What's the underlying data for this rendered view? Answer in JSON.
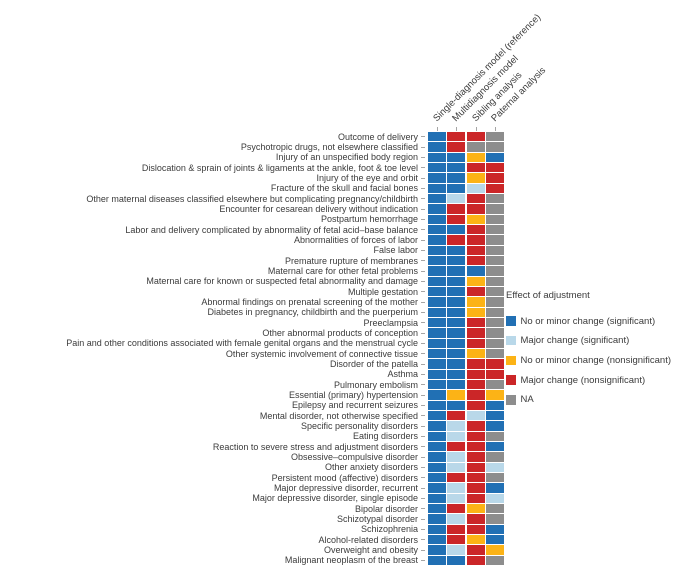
{
  "legend": {
    "title": "Effect of adjustment",
    "items": [
      {
        "code": "B",
        "label": "No or minor change (significant)",
        "color": "#2170b4"
      },
      {
        "code": "L",
        "label": "Major change (significant)",
        "color": "#b9d8e9"
      },
      {
        "code": "Y",
        "label": "No or minor change (nonsignificant)",
        "color": "#fcb316"
      },
      {
        "code": "R",
        "label": "Major change (nonsignificant)",
        "color": "#cb2628"
      },
      {
        "code": "G",
        "label": "NA",
        "color": "#8d8d8d"
      }
    ]
  },
  "chart_data": {
    "type": "heatmap",
    "columns": [
      "Single-diagnosis model (reference)",
      "Multidiagnosis model",
      "Sibling analysis",
      "Paternal analysis"
    ],
    "cell_value_legend": "codes map to legend.items: B=No or minor change (significant), L=Major change (significant), Y=No or minor change (nonsignificant), R=Major change (nonsignificant), G=NA",
    "rows": [
      {
        "label": "Outcome of delivery",
        "cells": [
          "B",
          "R",
          "R",
          "G"
        ]
      },
      {
        "label": "Psychotropic drugs, not elsewhere classified",
        "cells": [
          "B",
          "R",
          "G",
          "G"
        ]
      },
      {
        "label": "Injury of an unspecified body region",
        "cells": [
          "B",
          "B",
          "Y",
          "B"
        ]
      },
      {
        "label": "Dislocation & sprain of joints & ligaments at the ankle, foot & toe level",
        "cells": [
          "B",
          "B",
          "R",
          "R"
        ]
      },
      {
        "label": "Injury of the eye and orbit",
        "cells": [
          "B",
          "B",
          "Y",
          "R"
        ]
      },
      {
        "label": "Fracture of the skull and facial bones",
        "cells": [
          "B",
          "B",
          "L",
          "R"
        ]
      },
      {
        "label": "Other maternal diseases classified elsewhere but complicating pregnancy/childbirth",
        "cells": [
          "B",
          "L",
          "R",
          "G"
        ]
      },
      {
        "label": "Encounter for cesarean delivery without indication",
        "cells": [
          "B",
          "R",
          "R",
          "G"
        ]
      },
      {
        "label": "Postpartum hemorrhage",
        "cells": [
          "B",
          "R",
          "Y",
          "G"
        ]
      },
      {
        "label": "Labor and delivery complicated by abnormality of fetal acid–base balance",
        "cells": [
          "B",
          "B",
          "R",
          "G"
        ]
      },
      {
        "label": "Abnormalities of forces of labor",
        "cells": [
          "B",
          "R",
          "R",
          "G"
        ]
      },
      {
        "label": "False labor",
        "cells": [
          "B",
          "B",
          "R",
          "G"
        ]
      },
      {
        "label": "Premature rupture of membranes",
        "cells": [
          "B",
          "B",
          "R",
          "G"
        ]
      },
      {
        "label": "Maternal care for other fetal problems",
        "cells": [
          "B",
          "B",
          "B",
          "G"
        ]
      },
      {
        "label": "Maternal care for known or suspected fetal abnormality and damage",
        "cells": [
          "B",
          "B",
          "Y",
          "G"
        ]
      },
      {
        "label": "Multiple gestation",
        "cells": [
          "B",
          "B",
          "R",
          "G"
        ]
      },
      {
        "label": "Abnormal findings on prenatal screening of the mother",
        "cells": [
          "B",
          "B",
          "Y",
          "G"
        ]
      },
      {
        "label": "Diabetes in pregnancy, childbirth and the puerperium",
        "cells": [
          "B",
          "B",
          "Y",
          "G"
        ]
      },
      {
        "label": "Preeclampsia",
        "cells": [
          "B",
          "B",
          "R",
          "G"
        ]
      },
      {
        "label": "Other abnormal products of conception",
        "cells": [
          "B",
          "B",
          "R",
          "G"
        ]
      },
      {
        "label": "Pain and other conditions associated with female genital organs and the menstrual cycle",
        "cells": [
          "B",
          "B",
          "R",
          "G"
        ]
      },
      {
        "label": "Other systemic involvement of connective tissue",
        "cells": [
          "B",
          "B",
          "Y",
          "G"
        ]
      },
      {
        "label": "Disorder of the patella",
        "cells": [
          "B",
          "B",
          "R",
          "R"
        ]
      },
      {
        "label": "Asthma",
        "cells": [
          "B",
          "B",
          "R",
          "R"
        ]
      },
      {
        "label": "Pulmonary embolism",
        "cells": [
          "B",
          "B",
          "R",
          "G"
        ]
      },
      {
        "label": "Essential (primary) hypertension",
        "cells": [
          "B",
          "Y",
          "R",
          "Y"
        ]
      },
      {
        "label": "Epilepsy and recurrent seizures",
        "cells": [
          "B",
          "B",
          "R",
          "B"
        ]
      },
      {
        "label": "Mental disorder, not otherwise specified",
        "cells": [
          "B",
          "R",
          "L",
          "B"
        ]
      },
      {
        "label": "Specific personality disorders",
        "cells": [
          "B",
          "L",
          "R",
          "B"
        ]
      },
      {
        "label": "Eating disorders",
        "cells": [
          "B",
          "L",
          "R",
          "G"
        ]
      },
      {
        "label": "Reaction to severe stress and adjustment disorders",
        "cells": [
          "B",
          "R",
          "R",
          "B"
        ]
      },
      {
        "label": "Obsessive–compulsive disorder",
        "cells": [
          "B",
          "L",
          "R",
          "G"
        ]
      },
      {
        "label": "Other anxiety disorders",
        "cells": [
          "B",
          "L",
          "R",
          "L"
        ]
      },
      {
        "label": "Persistent mood (affective) disorders",
        "cells": [
          "B",
          "R",
          "R",
          "G"
        ]
      },
      {
        "label": "Major depressive disorder, recurrent",
        "cells": [
          "B",
          "L",
          "R",
          "B"
        ]
      },
      {
        "label": "Major depressive disorder, single episode",
        "cells": [
          "B",
          "L",
          "R",
          "L"
        ]
      },
      {
        "label": "Bipolar disorder",
        "cells": [
          "B",
          "R",
          "Y",
          "G"
        ]
      },
      {
        "label": "Schizotypal disorder",
        "cells": [
          "B",
          "L",
          "R",
          "G"
        ]
      },
      {
        "label": "Schizophrenia",
        "cells": [
          "B",
          "R",
          "R",
          "B"
        ]
      },
      {
        "label": "Alcohol-related disorders",
        "cells": [
          "B",
          "R",
          "Y",
          "B"
        ]
      },
      {
        "label": "Overweight and obesity",
        "cells": [
          "B",
          "L",
          "R",
          "Y"
        ]
      },
      {
        "label": "Malignant neoplasm of the breast",
        "cells": [
          "B",
          "B",
          "R",
          "G"
        ]
      }
    ]
  }
}
